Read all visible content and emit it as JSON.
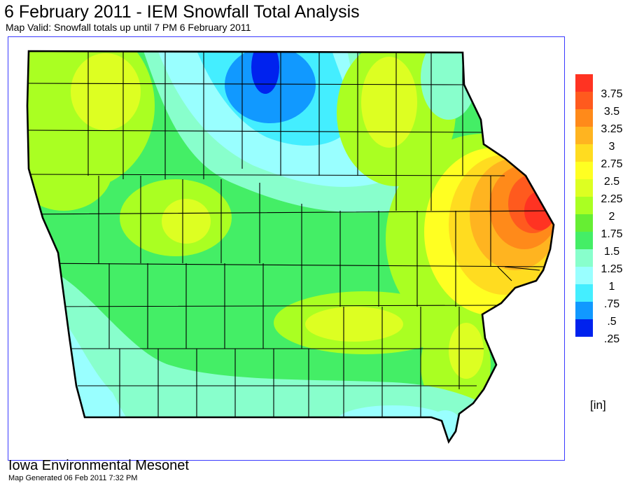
{
  "header": {
    "title": "6 February 2011 - IEM Snowfall Total Analysis",
    "subtitle": "Map Valid: Snowfall totals up until 7 PM 6 February 2011"
  },
  "legend": {
    "unit": "[in]",
    "entries": [
      {
        "label": "3.75",
        "color": "#ff3322"
      },
      {
        "label": "3.5",
        "color": "#ff5a1e"
      },
      {
        "label": "3.25",
        "color": "#ff8a1a"
      },
      {
        "label": "3",
        "color": "#ffb420"
      },
      {
        "label": "2.75",
        "color": "#ffdc20"
      },
      {
        "label": "2.5",
        "color": "#ffff22"
      },
      {
        "label": "2.25",
        "color": "#ddff22"
      },
      {
        "label": "2",
        "color": "#aaff22"
      },
      {
        "label": "1.75",
        "color": "#66ee33"
      },
      {
        "label": "1.5",
        "color": "#44ee66"
      },
      {
        "label": "1.25",
        "color": "#88ffcc"
      },
      {
        "label": "1",
        "color": "#99ffff"
      },
      {
        "label": ".75",
        "color": "#44eeff"
      },
      {
        "label": ".5",
        "color": "#1199ff"
      },
      {
        "label": ".25",
        "color": "#0022ee"
      }
    ]
  },
  "footer": {
    "organization": "Iowa Environmental Mesonet",
    "generated": "Map Generated 06 Feb 2011 7:32 PM"
  }
}
